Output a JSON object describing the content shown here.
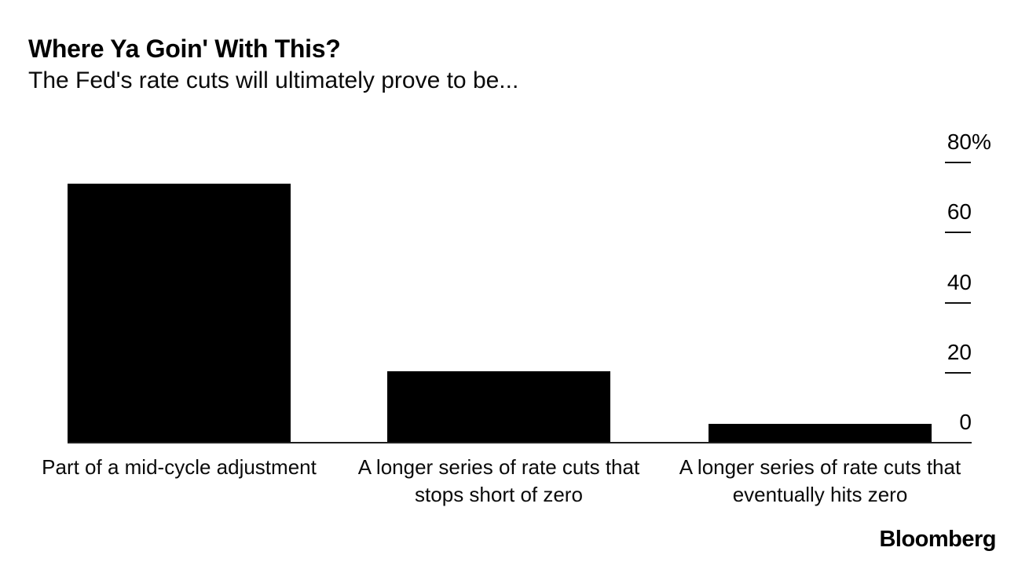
{
  "header": {
    "title": "Where Ya Goin' With This?",
    "subtitle": "The Fed's rate cuts will ultimately prove to be..."
  },
  "chart_data": {
    "type": "bar",
    "title": "Where Ya Goin' With This?",
    "subtitle": "The Fed's rate cuts will ultimately prove to be...",
    "categories": [
      "Part of a mid-cycle adjustment",
      "A longer series of rate cuts that stops short of zero",
      "A longer series of rate cuts that eventually hits zero"
    ],
    "values": [
      74,
      20.5,
      5.3
    ],
    "unit": "%",
    "ylabel": "",
    "xlabel": "",
    "ylim": [
      0,
      80
    ],
    "yticks": [
      {
        "text": "80",
        "suffix": "%",
        "value": 80
      },
      {
        "text": "60",
        "suffix": "",
        "value": 60
      },
      {
        "text": "40",
        "suffix": "",
        "value": 40
      },
      {
        "text": "20",
        "suffix": "",
        "value": 20
      },
      {
        "text": "0",
        "suffix": "",
        "value": 0
      }
    ],
    "yaxis_side": "right",
    "grid": false,
    "legend": "none",
    "bar_color": "#000000"
  },
  "branding": {
    "logo_text": "Bloomberg"
  },
  "colors": {
    "background": "#ffffff",
    "bar": "#000000",
    "axis_line": "#1f1f1f",
    "tick_dash": "#111111",
    "text": "#000000"
  }
}
